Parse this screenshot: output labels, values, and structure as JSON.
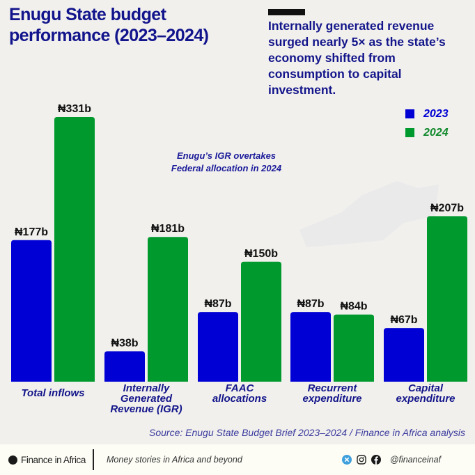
{
  "header": {
    "title_line1": "Enugu State budget",
    "title_line2": "performance (2023–2024)",
    "subtitle": "Internally generated revenue surged nearly 5× as the state’s economy shifted from consumption to capital investment."
  },
  "annotation": {
    "line1": "Enugu’s IGR overtakes",
    "line2": "Federal allocation in 2024"
  },
  "colors": {
    "series_2023": "#0000d4",
    "series_2024": "#00992e",
    "legend_2024_text": "#138a2e",
    "title": "#12148c"
  },
  "chart_data": {
    "type": "bar",
    "title": "Enugu State budget performance (2023–2024)",
    "xlabel": "",
    "ylabel": "",
    "unit": "₦ billion",
    "ylim": [
      0,
      331
    ],
    "grid": false,
    "legend_position": "top-right",
    "categories": [
      "Total inflows",
      "Internally Generated Revenue (IGR)",
      "FAAC allocations",
      "Recurrent expenditure",
      "Capital expenditure"
    ],
    "category_lines": [
      [
        "Total inflows"
      ],
      [
        "Internally",
        "Generated",
        "Revenue (IGR)"
      ],
      [
        "FAAC",
        "allocations"
      ],
      [
        "Recurrent",
        "expenditure"
      ],
      [
        "Capital",
        "expenditure"
      ]
    ],
    "series": [
      {
        "name": "2023",
        "values": [
          177,
          38,
          87,
          87,
          67
        ],
        "labels": [
          "₦177b",
          "₦38b",
          "₦87b",
          "₦87b",
          "₦67b"
        ]
      },
      {
        "name": "2024",
        "values": [
          331,
          181,
          150,
          84,
          207
        ],
        "labels": [
          "₦331b",
          "₦181b",
          "₦150b",
          "₦84b",
          "₦207b"
        ]
      }
    ],
    "annotations": [
      "Enugu’s IGR overtakes Federal allocation in 2024"
    ]
  },
  "source": "Source: Enugu State Budget Brief 2023–2024 / Finance in Africa analysis",
  "footer": {
    "brand": "Finance in Africa",
    "tagline": "Money stories in Africa and beyond",
    "handle": "@financeinaf",
    "social_icons": [
      "x-icon",
      "instagram-icon",
      "facebook-icon"
    ]
  }
}
